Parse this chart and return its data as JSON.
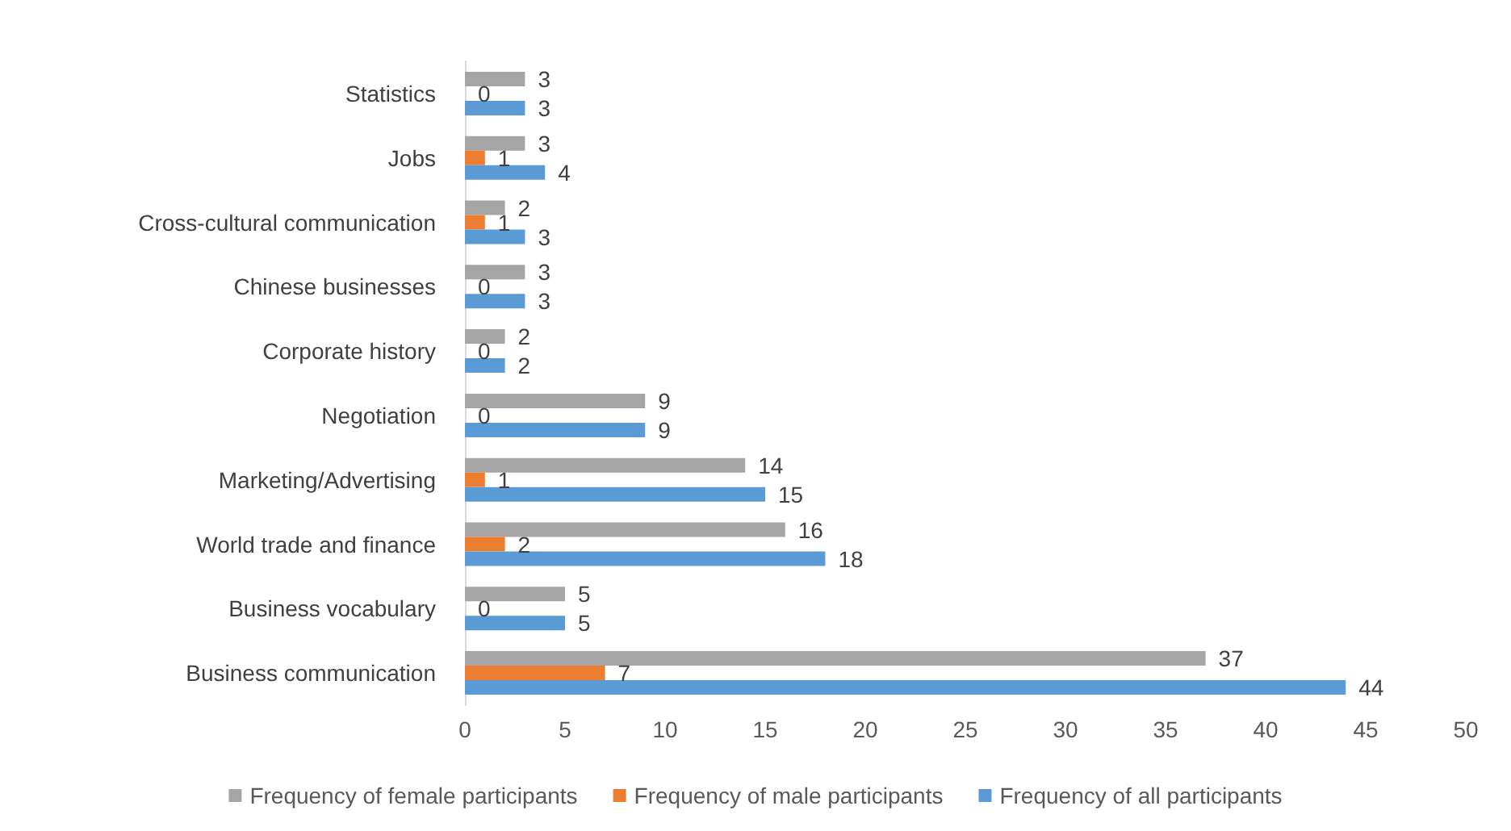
{
  "chart_data": {
    "type": "bar",
    "orientation": "horizontal",
    "categories": [
      "Statistics",
      "Jobs",
      "Cross-cultural communication",
      "Chinese businesses",
      "Corporate history",
      "Negotiation",
      "Marketing/Advertising",
      "World trade and finance",
      "Business vocabulary",
      "Business communication"
    ],
    "series": [
      {
        "name": "Frequency of female participants",
        "color": "#a5a5a5",
        "values": [
          3,
          3,
          2,
          3,
          2,
          9,
          14,
          16,
          5,
          37
        ]
      },
      {
        "name": "Frequency of male participants",
        "color": "#ed7d31",
        "values": [
          0,
          1,
          1,
          0,
          0,
          0,
          1,
          2,
          0,
          7
        ]
      },
      {
        "name": "Frequency of all participants",
        "color": "#5b9bd5",
        "values": [
          3,
          4,
          3,
          3,
          2,
          9,
          15,
          18,
          5,
          44
        ]
      }
    ],
    "xlim": [
      0,
      50
    ],
    "xticks": [
      0,
      5,
      10,
      15,
      20,
      25,
      30,
      35,
      40,
      45,
      50
    ],
    "grid": false,
    "legend": "bottom",
    "data_labels": true
  }
}
